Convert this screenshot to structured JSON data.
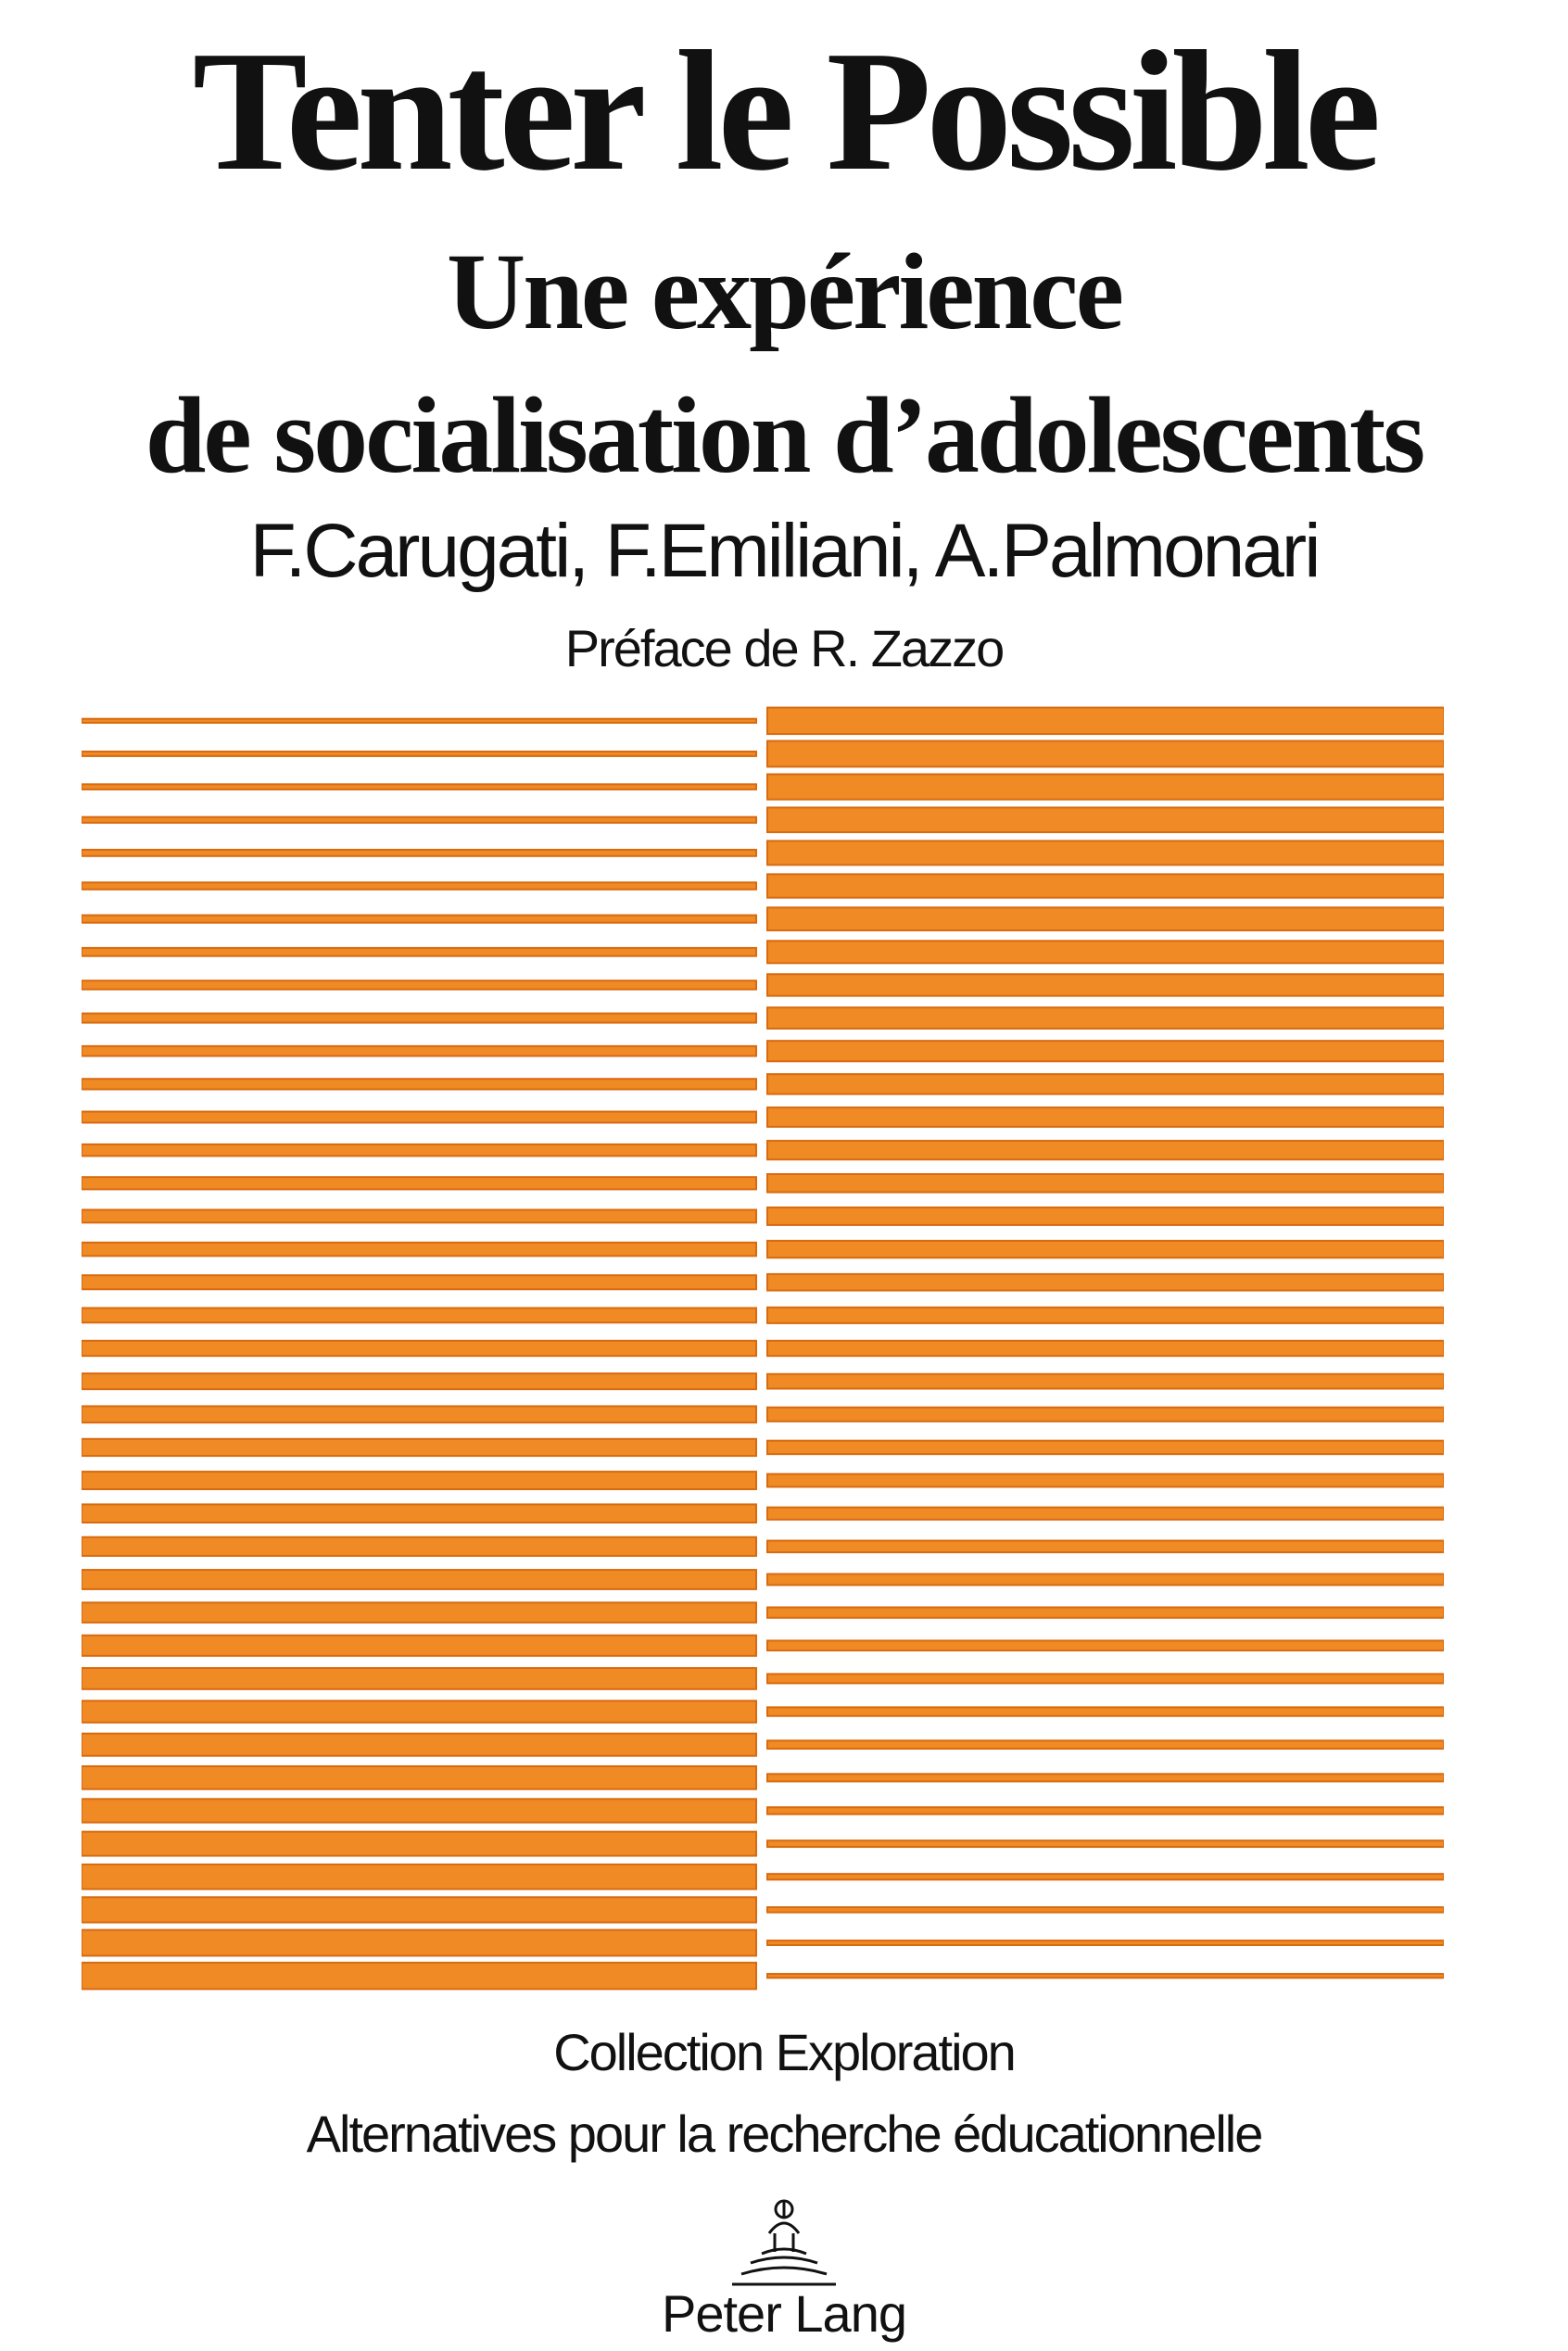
{
  "cover": {
    "title": "Tenter le Possible",
    "subtitle_line_1": "Une expérience",
    "subtitle_line_2": "de socialisation d’adolescents",
    "authors": "F.Carugati, F.Emiliani, A.Palmonari",
    "preface": "Préface de R. Zazzo",
    "collection": "Collection Exploration",
    "series": "Alternatives pour la recherche éducationnelle",
    "publisher": "Peter Lang"
  },
  "artwork": {
    "stripe_color": "#f08a24",
    "stripe_outline": "#d86a10",
    "left_panel_stripes": 39,
    "right_panel_stripes": 39
  },
  "icons": {
    "publisher_logo": "peter-lang-logo-icon"
  }
}
